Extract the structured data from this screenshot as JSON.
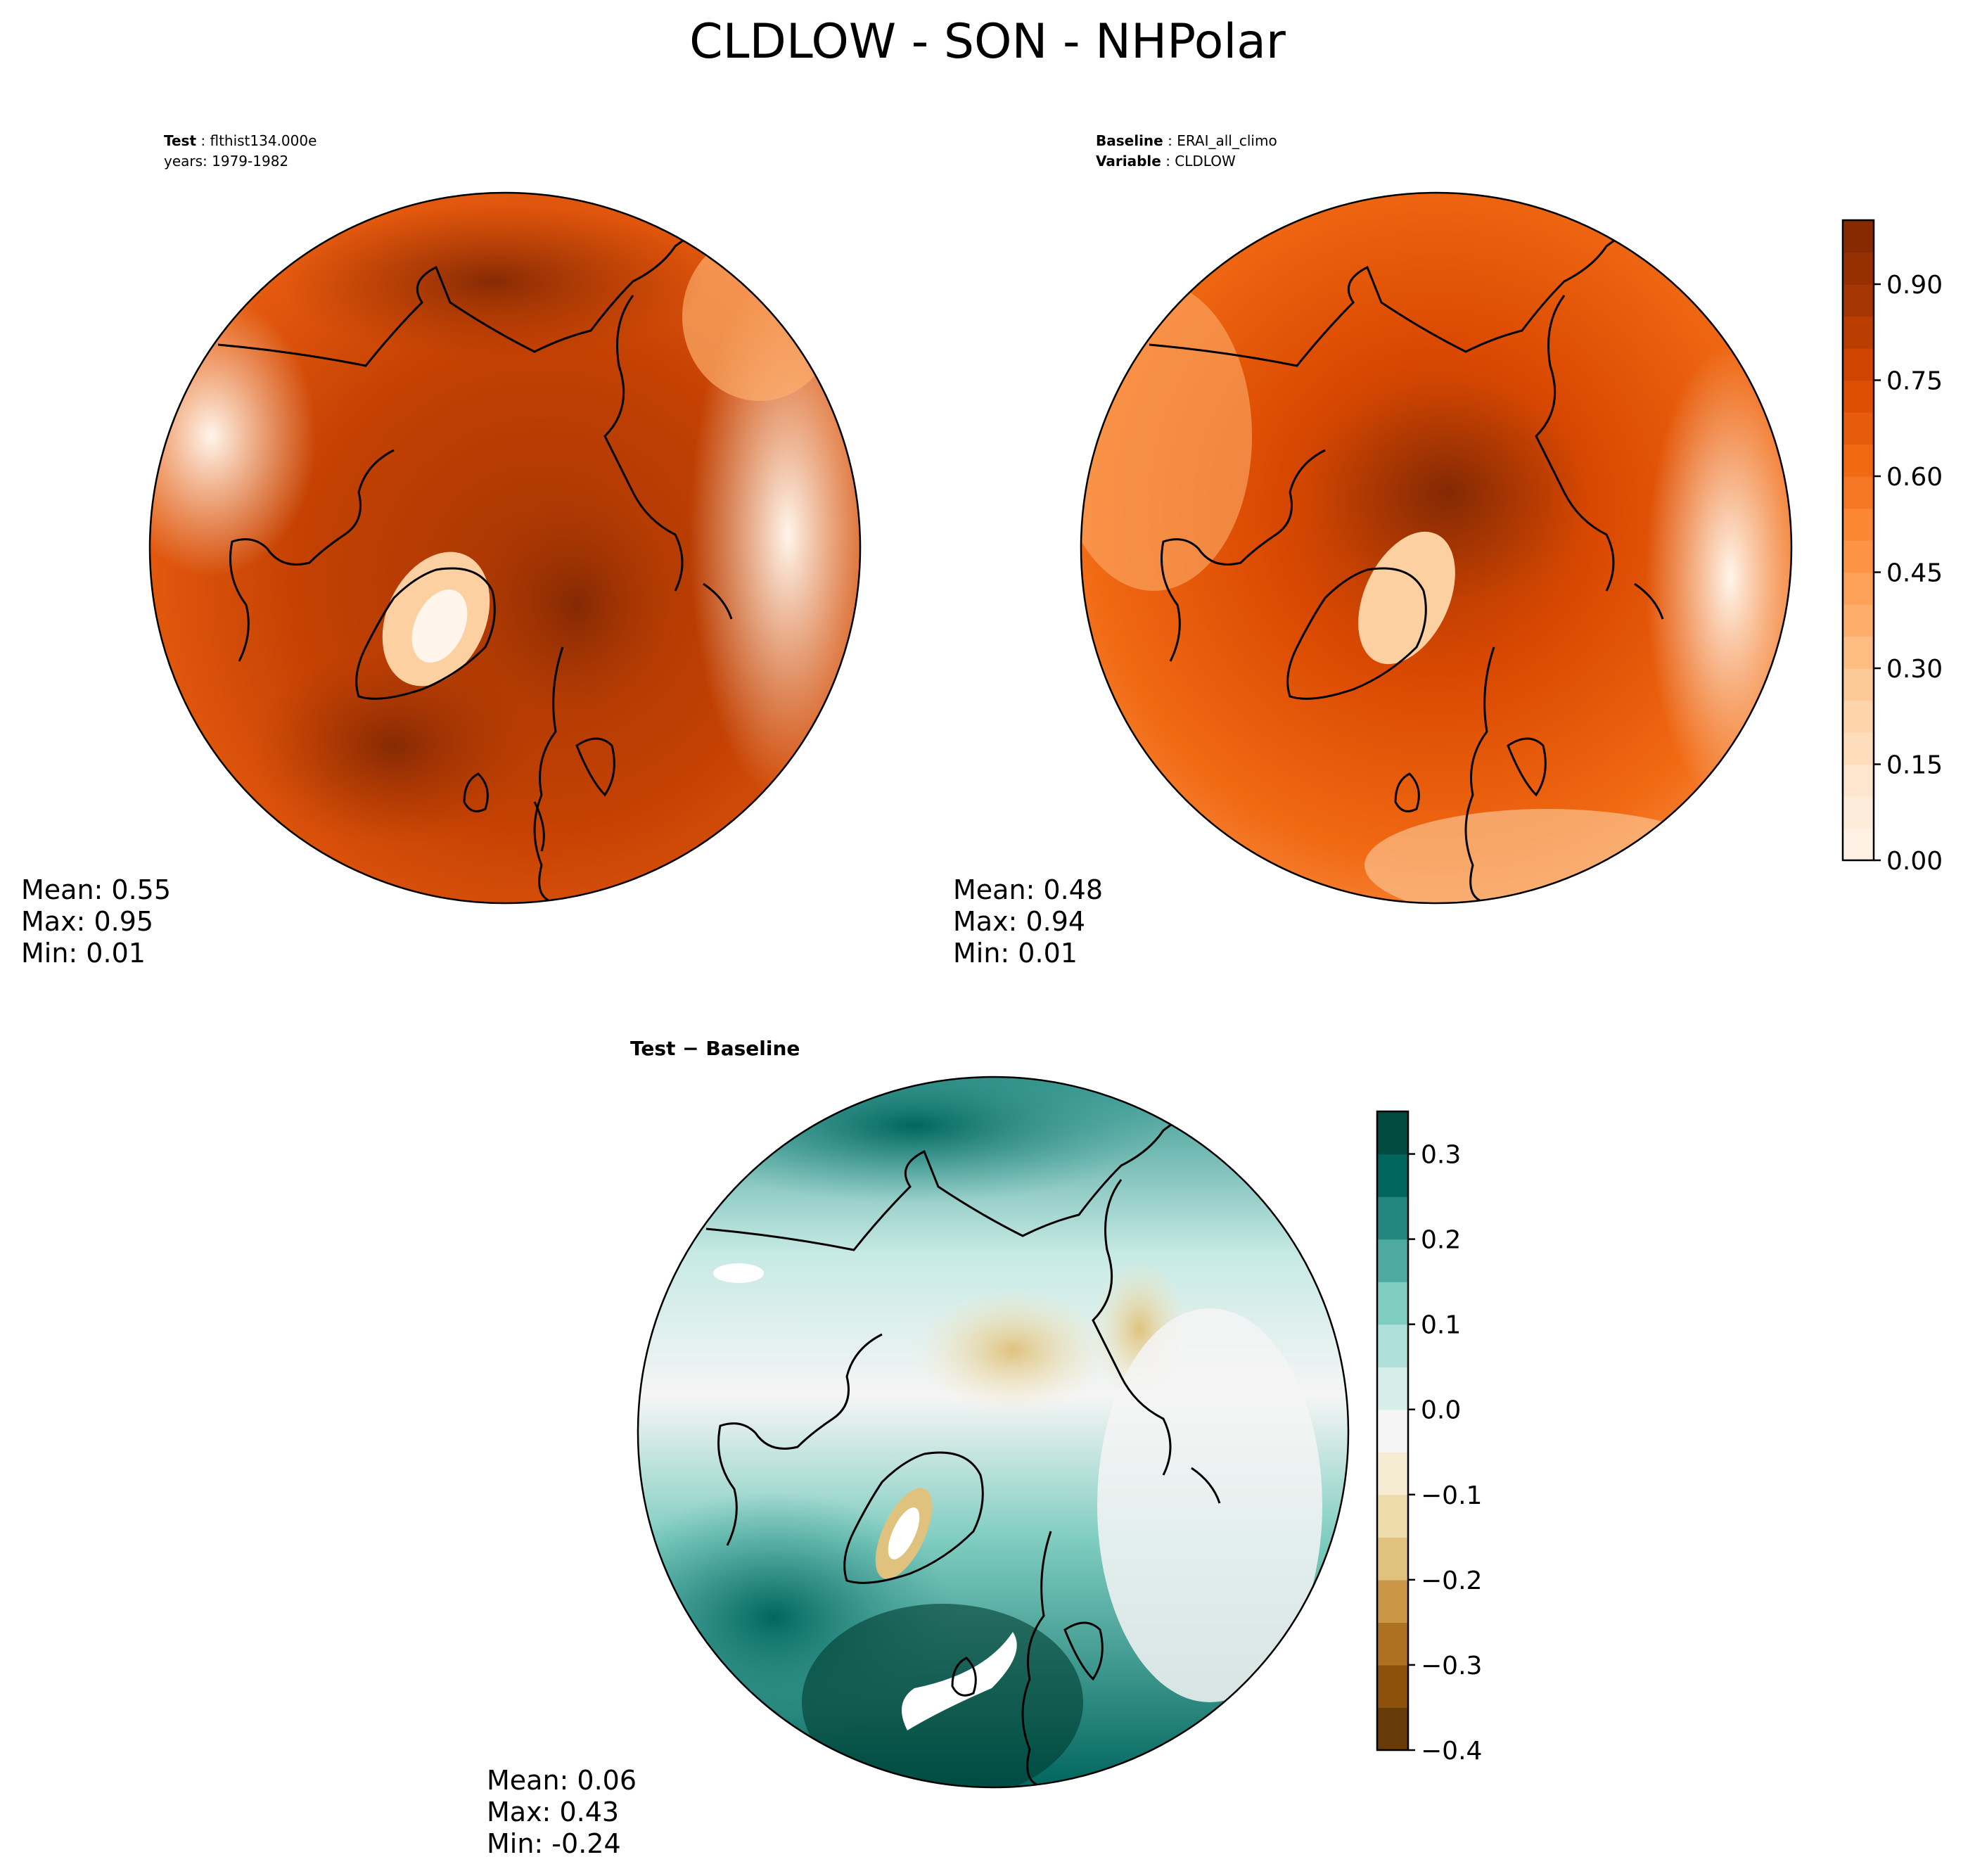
{
  "figure": {
    "title": "CLDLOW - SON - NHPolar"
  },
  "panels": {
    "test": {
      "label_bold": "Test",
      "label_value": "flthist134.000e",
      "label_line2": "years: 1979-1982",
      "stats": {
        "mean": "Mean:  0.55",
        "max": "Max:  0.95",
        "min": "Min:  0.01"
      }
    },
    "baseline": {
      "label_bold": "Baseline",
      "label_value": "ERAI_all_climo",
      "label2_bold": "Variable",
      "label2_value": "CLDLOW",
      "stats": {
        "mean": "Mean:  0.48",
        "max": "Max:  0.94",
        "min": "Min:  0.01"
      }
    },
    "diff": {
      "label_bold": "Test − Baseline",
      "stats": {
        "mean": "Mean:  0.06",
        "max": "Max:  0.43",
        "min": "Min: -0.24"
      }
    }
  },
  "colors": {
    "orange_scale": [
      "#fff5eb",
      "#fee6ce",
      "#fdd0a2",
      "#fdae6b",
      "#fd8d3c",
      "#f16913",
      "#d94801",
      "#a63603",
      "#7f2704"
    ],
    "diverging_scale": [
      "#543005",
      "#8c510a",
      "#bf812d",
      "#dfc27d",
      "#f6e8c3",
      "#f5f5f5",
      "#c7eae5",
      "#80cdc1",
      "#35978f",
      "#01665e",
      "#003c30"
    ]
  },
  "chart_data": [
    {
      "type": "heatmap",
      "panel": "test",
      "projection": "north-polar-stereographic",
      "stats": {
        "mean": 0.55,
        "max": 0.95,
        "min": 0.01
      }
    },
    {
      "type": "heatmap",
      "panel": "baseline",
      "projection": "north-polar-stereographic",
      "stats": {
        "mean": 0.48,
        "max": 0.94,
        "min": 0.01
      },
      "colorbar": {
        "range": [
          0.0,
          1.0
        ],
        "ticks": [
          "0.00",
          "0.15",
          "0.30",
          "0.45",
          "0.60",
          "0.75",
          "0.90"
        ],
        "tick_values": [
          0.0,
          0.15,
          0.3,
          0.45,
          0.6,
          0.75,
          0.9
        ]
      }
    },
    {
      "type": "heatmap",
      "panel": "diff",
      "projection": "north-polar-stereographic",
      "stats": {
        "mean": 0.06,
        "max": 0.43,
        "min": -0.24
      },
      "colorbar": {
        "range": [
          -0.4,
          0.35
        ],
        "ticks": [
          "−0.4",
          "−0.3",
          "−0.2",
          "−0.1",
          "0.0",
          "0.1",
          "0.2",
          "0.3"
        ],
        "tick_values": [
          -0.4,
          -0.3,
          -0.2,
          -0.1,
          0.0,
          0.1,
          0.2,
          0.3
        ]
      }
    }
  ]
}
